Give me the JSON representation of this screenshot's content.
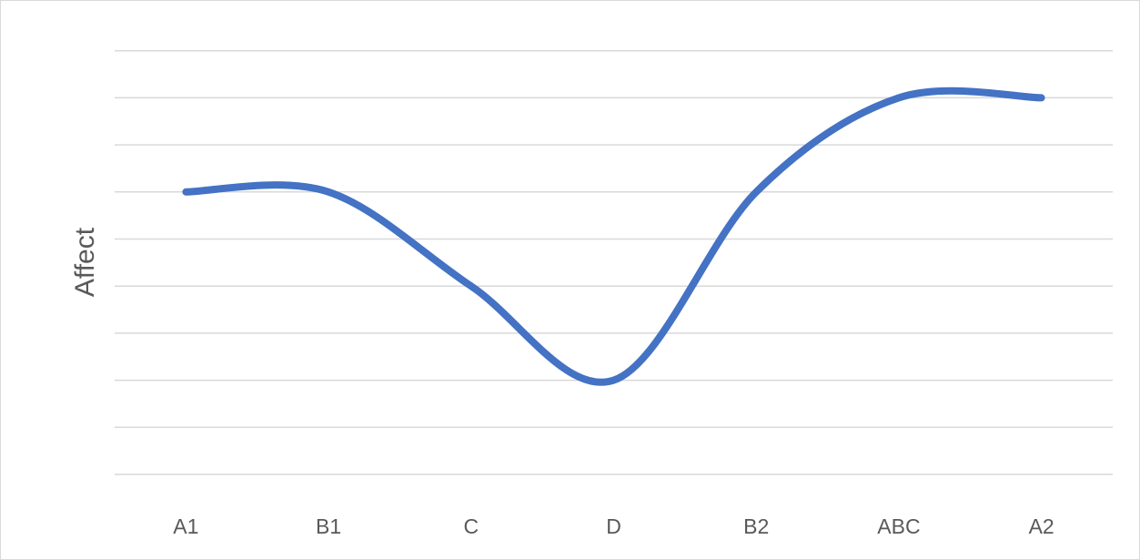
{
  "chart_data": {
    "type": "line",
    "title": "",
    "xlabel": "",
    "ylabel": "Affect",
    "categories": [
      "A1",
      "B1",
      "C",
      "D",
      "B2",
      "ABC",
      "A2"
    ],
    "series": [
      {
        "values": [
          6,
          6,
          4,
          2,
          6,
          8,
          8
        ]
      }
    ],
    "ylim": [
      0,
      9
    ],
    "y_gridline_step": 1,
    "y_tick_labels_shown": false,
    "smoothed": true,
    "grid": true,
    "legend": "none",
    "colors": {
      "line": "#4472c4",
      "gridline": "#d9d9d9",
      "text": "#595959",
      "frame": "#d9d9d9",
      "background": "#ffffff"
    }
  }
}
